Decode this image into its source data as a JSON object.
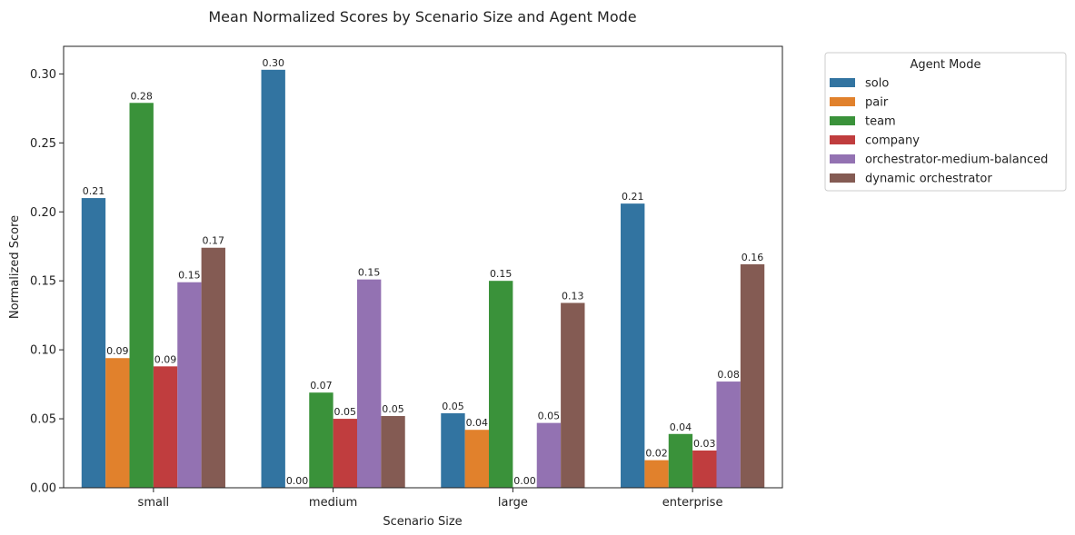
{
  "chart_data": {
    "type": "bar",
    "title": "Mean Normalized Scores by Scenario Size and Agent Mode",
    "xlabel": "Scenario Size",
    "ylabel": "Normalized Score",
    "categories": [
      "small",
      "medium",
      "large",
      "enterprise"
    ],
    "ylim": [
      0,
      0.32
    ],
    "yticks": [
      "0.00",
      "0.05",
      "0.10",
      "0.15",
      "0.20",
      "0.25",
      "0.30"
    ],
    "grid": false,
    "legend": {
      "title": "Agent Mode",
      "placement": "outside-right-top"
    },
    "series": [
      {
        "name": "solo",
        "color": "#3274a1",
        "values": [
          0.21,
          0.303,
          0.054,
          0.206
        ],
        "labels": [
          "0.21",
          "0.30",
          "0.05",
          "0.21"
        ]
      },
      {
        "name": "pair",
        "color": "#e1812c",
        "values": [
          0.094,
          0.0,
          0.042,
          0.02
        ],
        "labels": [
          "0.09",
          "0.00",
          "0.04",
          "0.02"
        ]
      },
      {
        "name": "team",
        "color": "#3a923a",
        "values": [
          0.279,
          0.069,
          0.15,
          0.039
        ],
        "labels": [
          "0.28",
          "0.07",
          "0.15",
          "0.04"
        ]
      },
      {
        "name": "company",
        "color": "#c03d3e",
        "values": [
          0.088,
          0.05,
          0.0,
          0.027
        ],
        "labels": [
          "0.09",
          "0.05",
          "",
          "0.03"
        ]
      },
      {
        "name": "orchestrator-medium-balanced",
        "color": "#9372b2",
        "values": [
          0.149,
          0.151,
          0.047,
          0.077
        ],
        "labels": [
          "0.15",
          "0.15",
          "0.05",
          "0.08"
        ]
      },
      {
        "name": "dynamic orchestrator",
        "color": "#845b53",
        "values": [
          0.174,
          0.052,
          0.134,
          0.162
        ],
        "labels": [
          "0.17",
          "0.05",
          "0.13",
          "0.16"
        ]
      }
    ],
    "annotations": [
      {
        "category": "large",
        "text": "0.00"
      }
    ]
  }
}
